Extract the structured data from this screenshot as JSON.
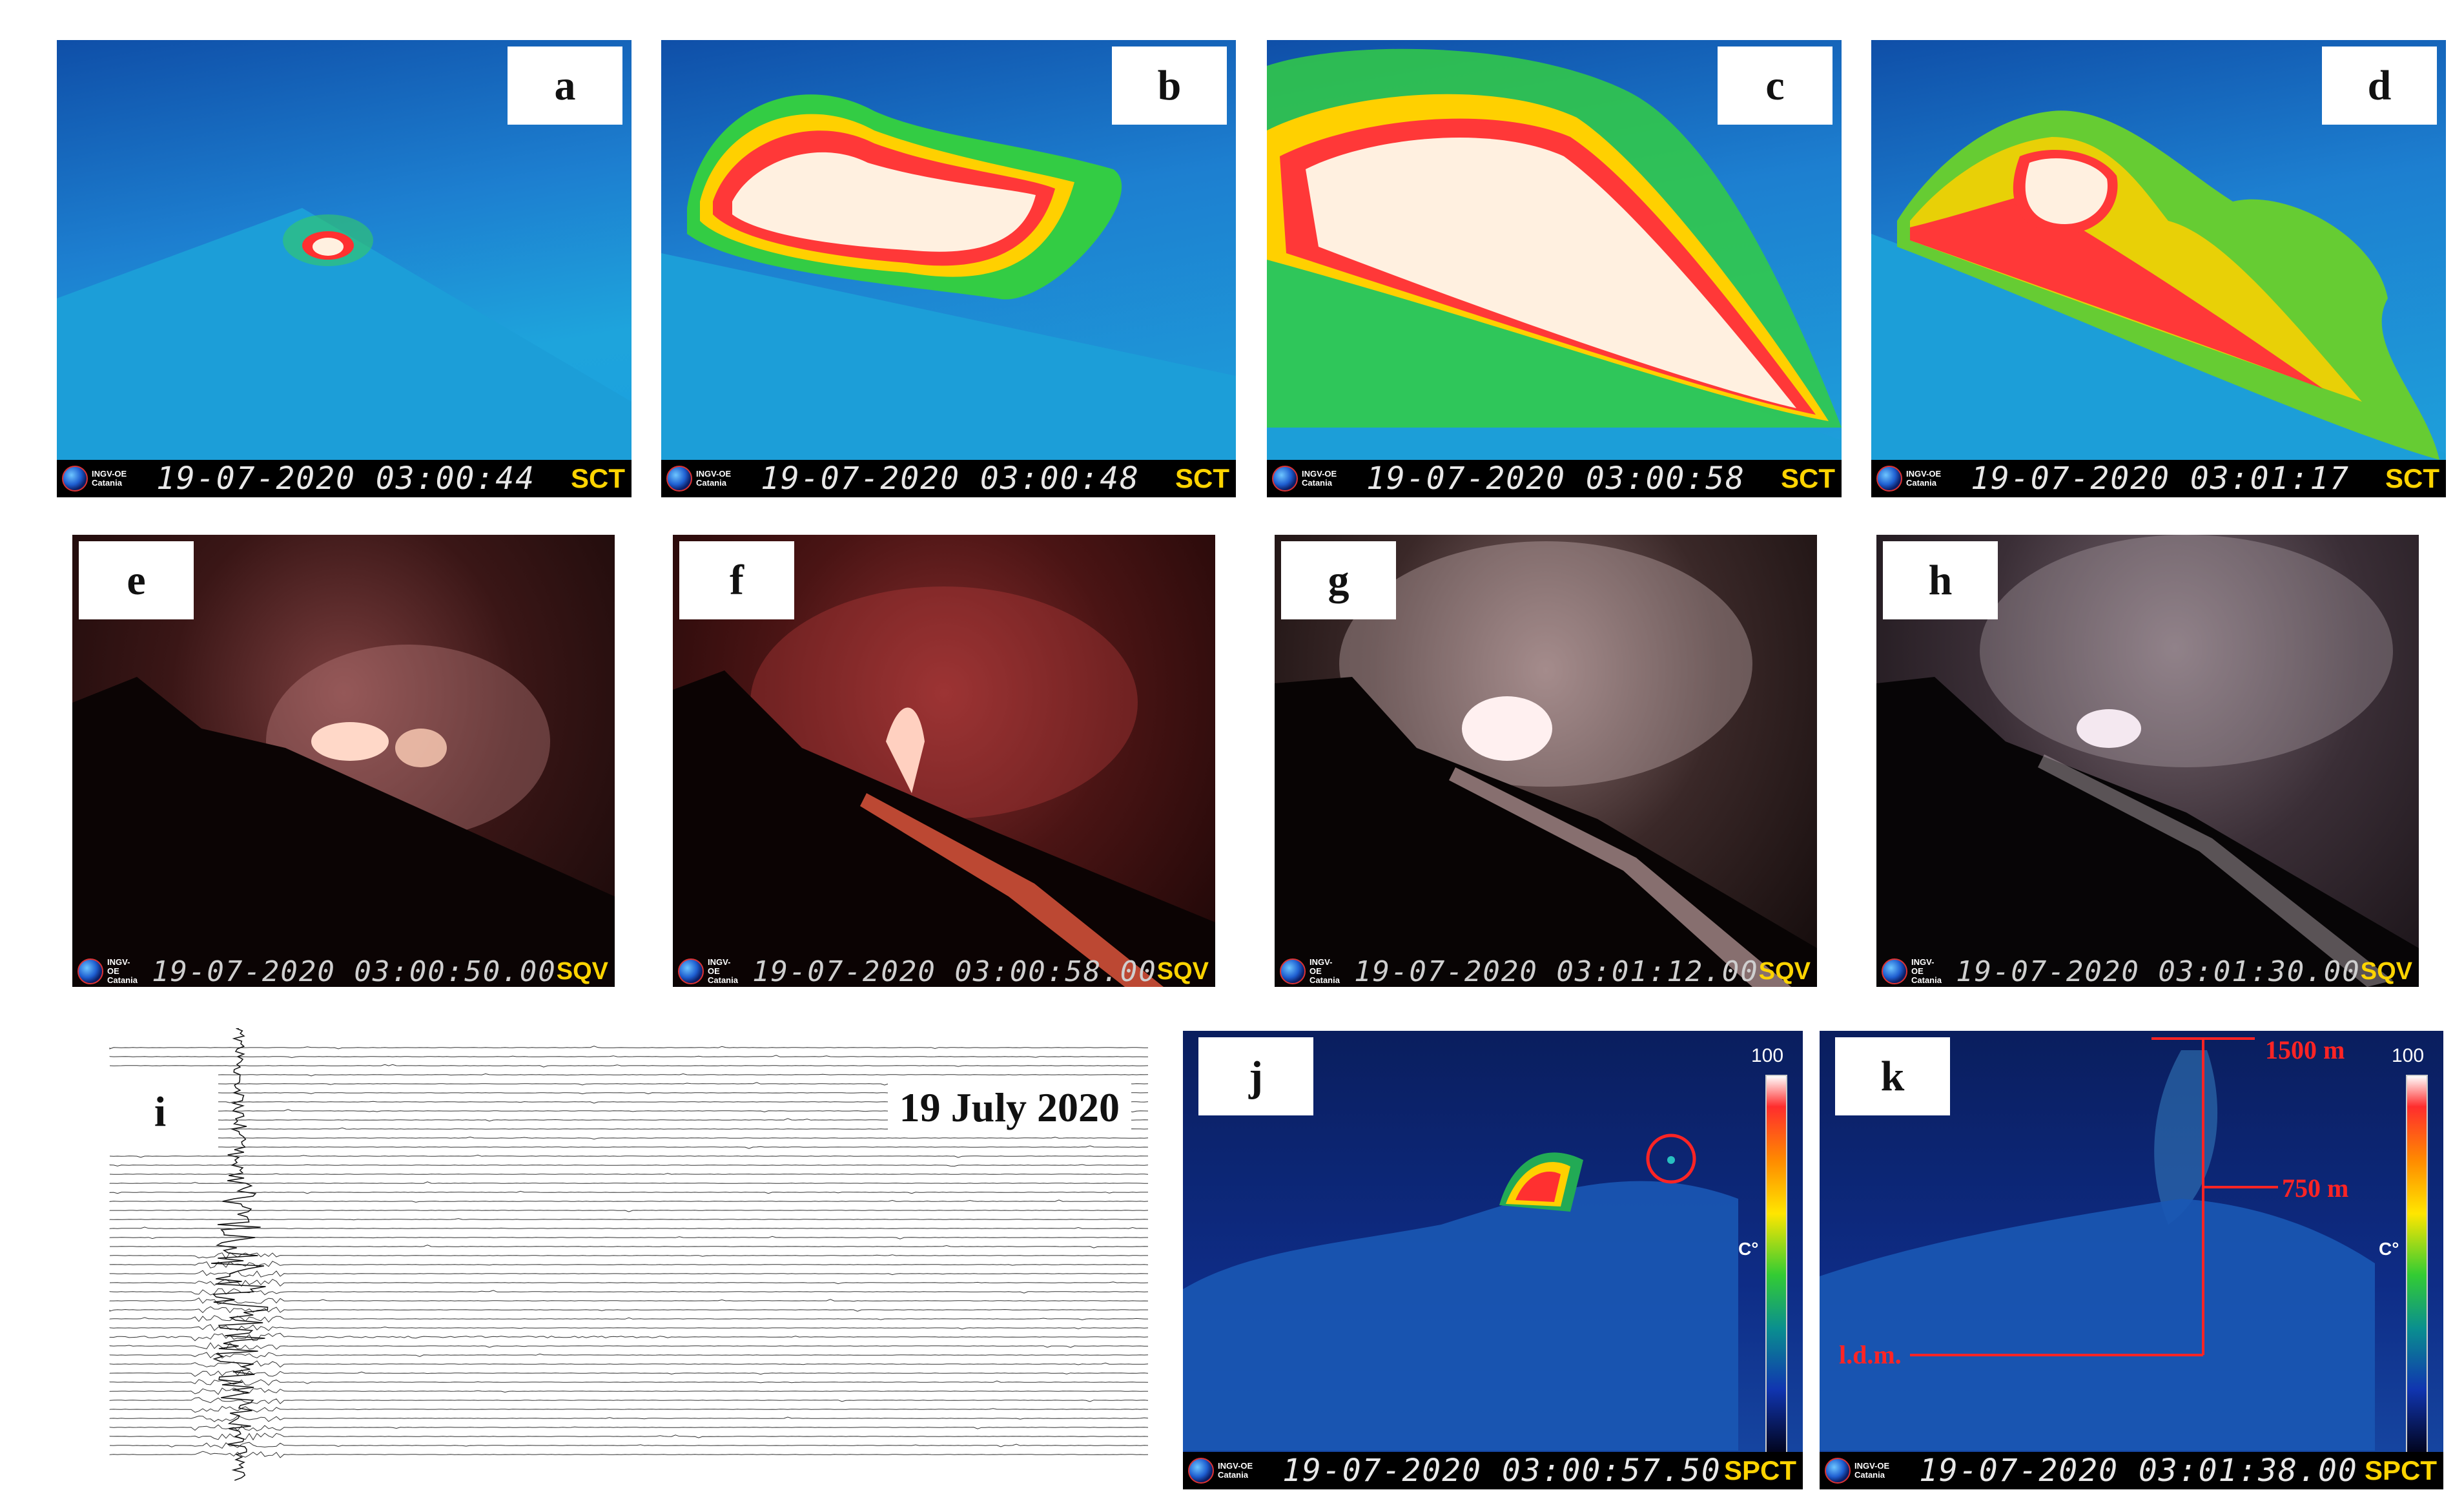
{
  "panels": {
    "a": {
      "letter": "a",
      "org": "INGV-OE Catania",
      "timestamp": "19-07-2020 03:00:44",
      "camera": "SCT"
    },
    "b": {
      "letter": "b",
      "org": "INGV-OE Catania",
      "timestamp": "19-07-2020 03:00:48",
      "camera": "SCT"
    },
    "c": {
      "letter": "c",
      "org": "INGV-OE Catania",
      "timestamp": "19-07-2020 03:00:58",
      "camera": "SCT"
    },
    "d": {
      "letter": "d",
      "org": "INGV-OE Catania",
      "timestamp": "19-07-2020 03:01:17",
      "camera": "SCT"
    },
    "e": {
      "letter": "e",
      "org": "INGV-OE Catania",
      "timestamp": "19-07-2020 03:00:50.00",
      "camera": "SQV"
    },
    "f": {
      "letter": "f",
      "org": "INGV-OE Catania",
      "timestamp": "19-07-2020 03:00:58.00",
      "camera": "SQV"
    },
    "g": {
      "letter": "g",
      "org": "INGV-OE Catania",
      "timestamp": "19-07-2020 03:01:12.00",
      "camera": "SQV"
    },
    "h": {
      "letter": "h",
      "org": "INGV-OE Catania",
      "timestamp": "19-07-2020 03:01:30.00",
      "camera": "SQV"
    },
    "i": {
      "letter": "i",
      "date": "19 July 2020"
    },
    "j": {
      "letter": "j",
      "org": "INGV-OE Catania",
      "timestamp": "19-07-2020 03:00:57.50",
      "camera": "SPCT",
      "scale_max": "100",
      "scale_min": "0",
      "scale_unit": "C°"
    },
    "k": {
      "letter": "k",
      "org": "INGV-OE Catania",
      "timestamp": "19-07-2020 03:01:38.00",
      "camera": "SPCT",
      "scale_max": "100",
      "scale_min": "0",
      "scale_unit": "C°",
      "height_top": "1500 m",
      "height_mid": "750 m",
      "sea_level": "l.d.m."
    }
  },
  "colors": {
    "thermal_bg": "#1aa0e0",
    "thermal_hot": "#fff0e0",
    "night_bg": "#1a0a0a",
    "annotation_red": "#ff2424",
    "stamp_camera": "#ffd400"
  }
}
